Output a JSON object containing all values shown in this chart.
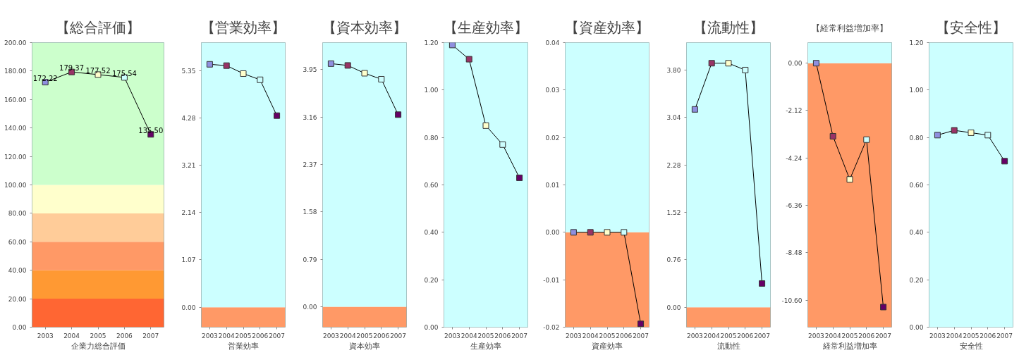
{
  "chart_data": [
    {
      "type": "line",
      "title": "【総合評価】",
      "xlabel": "企業力総合評価",
      "categories": [
        "2003",
        "2004",
        "2005",
        "2006",
        "2007"
      ],
      "marker": "square",
      "ylim": [
        0,
        200
      ],
      "yticks": [
        {
          "value": 0,
          "label": "0.00"
        },
        {
          "value": 20,
          "label": "20.00"
        },
        {
          "value": 40,
          "label": "40.00"
        },
        {
          "value": 60,
          "label": "60.00"
        },
        {
          "value": 80,
          "label": "80.00"
        },
        {
          "value": 100,
          "label": "100.00"
        },
        {
          "value": 120,
          "label": "120.00"
        },
        {
          "value": 140,
          "label": "140.00"
        },
        {
          "value": 160,
          "label": "160.00"
        },
        {
          "value": 180,
          "label": "180.00"
        },
        {
          "value": 200,
          "label": "200.00"
        }
      ],
      "bands": [
        {
          "axis": "y",
          "from": 0,
          "to": 20,
          "color": "#ff6633"
        },
        {
          "axis": "y",
          "from": 20,
          "to": 40,
          "color": "#ff9933"
        },
        {
          "axis": "y",
          "from": 40,
          "to": 60,
          "color": "#ff9966"
        },
        {
          "axis": "y",
          "from": 60,
          "to": 80,
          "color": "#ffcc99"
        },
        {
          "axis": "y",
          "from": 80,
          "to": 100,
          "color": "#ffffcc"
        },
        {
          "axis": "y",
          "from": 100,
          "to": 200,
          "color": "#ccffcc"
        }
      ],
      "series": [
        {
          "color": "#000000",
          "colors": [
            "#8f8fdf",
            "#993366",
            "#ffffcc",
            "#ccffff",
            "#660066"
          ],
          "values": [
            172.22,
            179.37,
            177.52,
            175.54,
            135.5
          ],
          "value_labels": [
            "172.22",
            "179.37",
            "177.52",
            "175.54",
            "135.50"
          ]
        }
      ]
    },
    {
      "type": "line",
      "title": "【営業効率】",
      "xlabel": "営業効率",
      "categories": [
        "2003",
        "2004",
        "2005",
        "2006",
        "2007"
      ],
      "marker": "square",
      "ylim": [
        -0.45,
        5.98
      ],
      "yticks": [
        {
          "value": 0,
          "label": "0.00"
        },
        1.07,
        2.14,
        3.21,
        4.28,
        5.35
      ],
      "bands": [
        {
          "axis": "y",
          "from": -0.45,
          "to": 0,
          "color": "#ff9966"
        },
        {
          "axis": "y",
          "from": 0,
          "to": 5.98,
          "color": "#ccffff"
        }
      ],
      "series": [
        {
          "color": "#000000",
          "colors": [
            "#8f8fdf",
            "#993366",
            "#ffffcc",
            "#ccffff",
            "#660066"
          ],
          "values": [
            5.49,
            5.46,
            5.28,
            5.14,
            4.33
          ]
        }
      ]
    },
    {
      "type": "line",
      "title": "【資本効率】",
      "xlabel": "資本効率",
      "categories": [
        "2003",
        "2004",
        "2005",
        "2006",
        "2007"
      ],
      "marker": "square",
      "ylim": [
        -0.34,
        4.4
      ],
      "yticks": [
        {
          "value": 0,
          "label": "0.00"
        },
        0.79,
        1.58,
        2.37,
        3.16,
        3.95
      ],
      "bands": [
        {
          "axis": "y",
          "from": -0.34,
          "to": 0,
          "color": "#ff9966"
        },
        {
          "axis": "y",
          "from": 0,
          "to": 4.4,
          "color": "#ccffff"
        }
      ],
      "series": [
        {
          "color": "#000000",
          "colors": [
            "#8f8fdf",
            "#993366",
            "#ffffcc",
            "#ccffff",
            "#660066"
          ],
          "values": [
            4.05,
            4.02,
            3.89,
            3.79,
            3.2
          ]
        }
      ]
    },
    {
      "type": "line",
      "title": "【生産効率】",
      "xlabel": "生産効率",
      "categories": [
        "2003",
        "2004",
        "2005",
        "2006",
        "2007"
      ],
      "marker": "square",
      "ylim": [
        0,
        1.2
      ],
      "yticks": [
        {
          "value": 0,
          "label": "0.00"
        },
        {
          "value": 0.2,
          "label": "0.20"
        },
        {
          "value": 0.4,
          "label": "0.40"
        },
        {
          "value": 0.6,
          "label": "0.60"
        },
        {
          "value": 0.8,
          "label": "0.80"
        },
        {
          "value": 1,
          "label": "1.00"
        },
        {
          "value": 1.2,
          "label": "1.20"
        }
      ],
      "bands": [
        {
          "axis": "y",
          "from": 0,
          "to": 1.2,
          "color": "#ccffff"
        }
      ],
      "series": [
        {
          "color": "#000000",
          "colors": [
            "#8f8fdf",
            "#993366",
            "#ffffcc",
            "#ccffff",
            "#660066"
          ],
          "values": [
            1.19,
            1.13,
            0.85,
            0.77,
            0.63
          ]
        }
      ]
    },
    {
      "type": "line",
      "title": "【資産効率】",
      "xlabel": "資産効率",
      "categories": [
        "2003",
        "2004",
        "2005",
        "2006",
        "2007"
      ],
      "marker": "square",
      "ylim": [
        -0.02,
        0.04
      ],
      "yticks": [
        {
          "value": -0.02,
          "label": "-0.02"
        },
        {
          "value": -0.01,
          "label": "-0.01"
        },
        {
          "value": 0,
          "label": "0.00"
        },
        {
          "value": 0.01,
          "label": "0.01"
        },
        {
          "value": 0.02,
          "label": "0.02"
        },
        {
          "value": 0.03,
          "label": "0.03"
        },
        {
          "value": 0.04,
          "label": "0.04"
        }
      ],
      "bands": [
        {
          "axis": "y",
          "from": -0.02,
          "to": 0,
          "color": "#ff9966"
        },
        {
          "axis": "y",
          "from": 0,
          "to": 0.04,
          "color": "#ccffff"
        }
      ],
      "series": [
        {
          "color": "#000000",
          "colors": [
            "#8f8fdf",
            "#993366",
            "#ffffcc",
            "#ccffff",
            "#660066"
          ],
          "values": [
            0,
            0,
            0,
            0,
            -0.0193
          ]
        }
      ]
    },
    {
      "type": "line",
      "title": "【流動性】",
      "xlabel": "流動性",
      "categories": [
        "2003",
        "2004",
        "2005",
        "2006",
        "2007"
      ],
      "marker": "square",
      "ylim": [
        -0.32,
        4.24
      ],
      "yticks": [
        {
          "value": 0,
          "label": "0.00"
        },
        0.76,
        1.52,
        2.28,
        3.04,
        {
          "value": 3.8,
          "label": "3.80"
        }
      ],
      "bands": [
        {
          "axis": "y",
          "from": -0.32,
          "to": 0,
          "color": "#ff9966"
        },
        {
          "axis": "y",
          "from": 0,
          "to": 4.24,
          "color": "#ccffff"
        }
      ],
      "series": [
        {
          "color": "#000000",
          "colors": [
            "#8f8fdf",
            "#993366",
            "#ffffcc",
            "#ccffff",
            "#660066"
          ],
          "values": [
            3.17,
            3.91,
            3.91,
            3.8,
            0.38
          ]
        }
      ]
    },
    {
      "type": "line",
      "title": "【経常利益増加率】",
      "xlabel": "経常利益増加率",
      "categories": [
        "2003",
        "2004",
        "2005",
        "2006",
        "2007"
      ],
      "marker": "square",
      "ylim": [
        -11.81,
        0.92
      ],
      "yticks": [
        {
          "value": -10.6,
          "label": "-10.60"
        },
        {
          "value": -8.48,
          "label": "-8.48"
        },
        {
          "value": -6.36,
          "label": "-6.36"
        },
        {
          "value": -4.24,
          "label": "-4.24"
        },
        {
          "value": -2.12,
          "label": "-2.12"
        },
        {
          "value": 0,
          "label": "0.00"
        }
      ],
      "bands": [
        {
          "axis": "y",
          "from": -11.81,
          "to": 0,
          "color": "#ff9966"
        },
        {
          "axis": "y",
          "from": 0,
          "to": 0.92,
          "color": "#ccffff"
        }
      ],
      "series": [
        {
          "color": "#000000",
          "colors": [
            "#8f8fdf",
            "#993366",
            "#ffffcc",
            "#ccffff",
            "#660066"
          ],
          "values": [
            0,
            -3.27,
            -5.2,
            -3.42,
            -10.91
          ]
        }
      ]
    },
    {
      "type": "line",
      "title": "【安全性】",
      "xlabel": "安全性",
      "categories": [
        "2003",
        "2004",
        "2005",
        "2006",
        "2007"
      ],
      "marker": "square",
      "ylim": [
        0,
        1.2
      ],
      "yticks": [
        {
          "value": 0,
          "label": "0.00"
        },
        {
          "value": 0.2,
          "label": "0.20"
        },
        {
          "value": 0.4,
          "label": "0.40"
        },
        {
          "value": 0.6,
          "label": "0.60"
        },
        {
          "value": 0.8,
          "label": "0.80"
        },
        {
          "value": 1,
          "label": "1.00"
        },
        {
          "value": 1.2,
          "label": "1.20"
        }
      ],
      "bands": [
        {
          "axis": "y",
          "from": 0,
          "to": 1.2,
          "color": "#ccffff"
        }
      ],
      "series": [
        {
          "color": "#000000",
          "colors": [
            "#8f8fdf",
            "#993366",
            "#ffffcc",
            "#ccffff",
            "#660066"
          ],
          "values": [
            0.81,
            0.83,
            0.82,
            0.81,
            0.7
          ]
        }
      ]
    }
  ]
}
